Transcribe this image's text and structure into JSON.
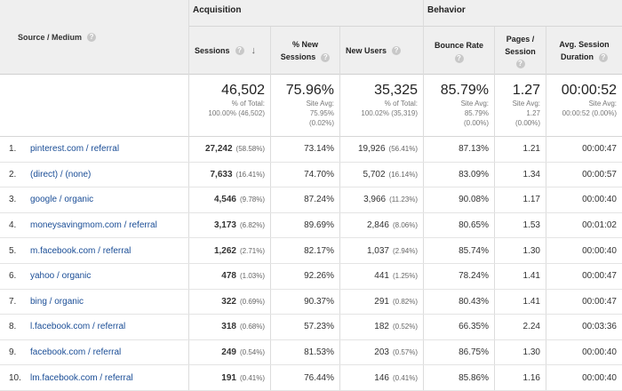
{
  "header": {
    "source_medium": "Source / Medium",
    "acquisition": "Acquisition",
    "behavior": "Behavior",
    "sessions": "Sessions",
    "new_sessions": "% New Sessions",
    "new_users": "New Users",
    "bounce_rate": "Bounce Rate",
    "pages_session": "Pages / Session",
    "avg_duration": "Avg. Session Duration",
    "help_glyph": "?",
    "sort_glyph": "↓"
  },
  "totals": {
    "sessions": "46,502",
    "sessions_sub1": "% of Total:",
    "sessions_sub2": "100.00% (46,502)",
    "new_sessions": "75.96%",
    "new_sessions_sub1": "Site Avg:",
    "new_sessions_sub2": "75.95%",
    "new_sessions_sub3": "(0.02%)",
    "new_users": "35,325",
    "new_users_sub1": "% of Total:",
    "new_users_sub2": "100.02% (35,319)",
    "bounce": "85.79%",
    "bounce_sub1": "Site Avg:",
    "bounce_sub2": "85.79%",
    "bounce_sub3": "(0.00%)",
    "pages": "1.27",
    "pages_sub1": "Site Avg:",
    "pages_sub2": "1.27",
    "pages_sub3": "(0.00%)",
    "duration": "00:00:52",
    "duration_sub1": "Site Avg:",
    "duration_sub2": "00:00:52 (0.00%)"
  },
  "rows": [
    {
      "idx": "1.",
      "src": "pinterest.com / referral",
      "sessions": "27,242",
      "sessions_pct": "(58.58%)",
      "new": "73.14%",
      "users": "19,926",
      "users_pct": "(56.41%)",
      "bounce": "87.13%",
      "pages": "1.21",
      "dur": "00:00:47"
    },
    {
      "idx": "2.",
      "src": "(direct) / (none)",
      "sessions": "7,633",
      "sessions_pct": "(16.41%)",
      "new": "74.70%",
      "users": "5,702",
      "users_pct": "(16.14%)",
      "bounce": "83.09%",
      "pages": "1.34",
      "dur": "00:00:57"
    },
    {
      "idx": "3.",
      "src": "google / organic",
      "sessions": "4,546",
      "sessions_pct": "(9.78%)",
      "new": "87.24%",
      "users": "3,966",
      "users_pct": "(11.23%)",
      "bounce": "90.08%",
      "pages": "1.17",
      "dur": "00:00:40"
    },
    {
      "idx": "4.",
      "src": "moneysavingmom.com / referral",
      "sessions": "3,173",
      "sessions_pct": "(6.82%)",
      "new": "89.69%",
      "users": "2,846",
      "users_pct": "(8.06%)",
      "bounce": "80.65%",
      "pages": "1.53",
      "dur": "00:01:02"
    },
    {
      "idx": "5.",
      "src": "m.facebook.com / referral",
      "sessions": "1,262",
      "sessions_pct": "(2.71%)",
      "new": "82.17%",
      "users": "1,037",
      "users_pct": "(2.94%)",
      "bounce": "85.74%",
      "pages": "1.30",
      "dur": "00:00:40"
    },
    {
      "idx": "6.",
      "src": "yahoo / organic",
      "sessions": "478",
      "sessions_pct": "(1.03%)",
      "new": "92.26%",
      "users": "441",
      "users_pct": "(1.25%)",
      "bounce": "78.24%",
      "pages": "1.41",
      "dur": "00:00:47"
    },
    {
      "idx": "7.",
      "src": "bing / organic",
      "sessions": "322",
      "sessions_pct": "(0.69%)",
      "new": "90.37%",
      "users": "291",
      "users_pct": "(0.82%)",
      "bounce": "80.43%",
      "pages": "1.41",
      "dur": "00:00:47"
    },
    {
      "idx": "8.",
      "src": "l.facebook.com / referral",
      "sessions": "318",
      "sessions_pct": "(0.68%)",
      "new": "57.23%",
      "users": "182",
      "users_pct": "(0.52%)",
      "bounce": "66.35%",
      "pages": "2.24",
      "dur": "00:03:36"
    },
    {
      "idx": "9.",
      "src": "facebook.com / referral",
      "sessions": "249",
      "sessions_pct": "(0.54%)",
      "new": "81.53%",
      "users": "203",
      "users_pct": "(0.57%)",
      "bounce": "86.75%",
      "pages": "1.30",
      "dur": "00:00:40"
    },
    {
      "idx": "10.",
      "src": "lm.facebook.com / referral",
      "sessions": "191",
      "sessions_pct": "(0.41%)",
      "new": "76.44%",
      "users": "146",
      "users_pct": "(0.41%)",
      "bounce": "85.86%",
      "pages": "1.16",
      "dur": "00:00:40"
    }
  ]
}
